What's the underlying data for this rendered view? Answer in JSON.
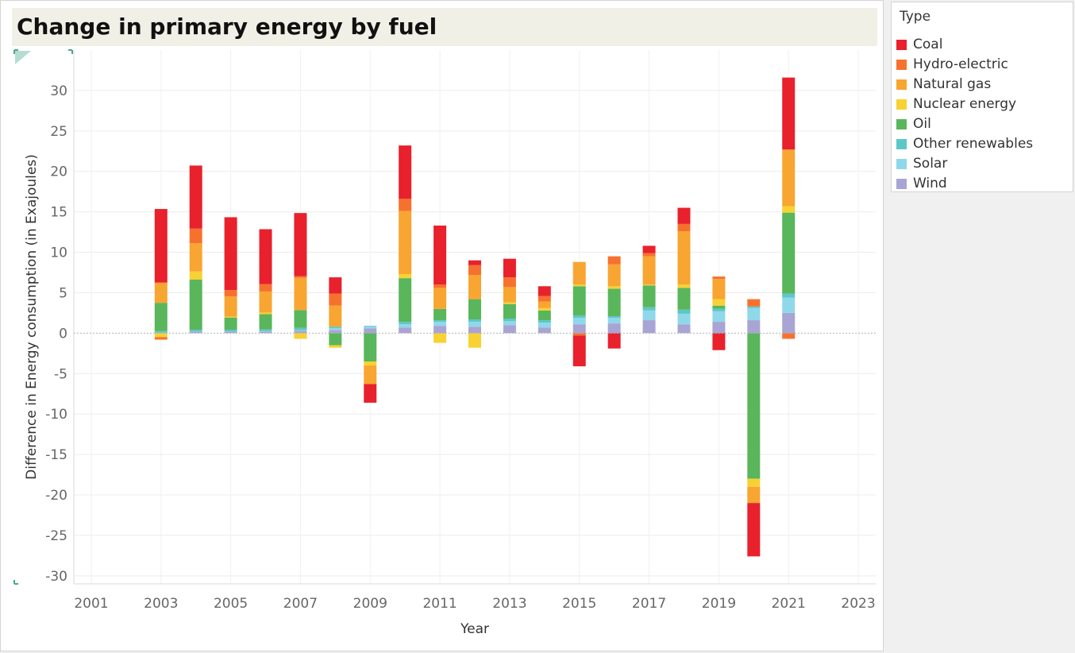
{
  "title": "Change in primary energy by fuel",
  "legend": {
    "title": "Type",
    "items": [
      {
        "label": "Coal",
        "color": "#e8212c"
      },
      {
        "label": "Hydro-electric",
        "color": "#f7712e"
      },
      {
        "label": "Natural gas",
        "color": "#f8a531"
      },
      {
        "label": "Nuclear energy",
        "color": "#f8d133"
      },
      {
        "label": "Oil",
        "color": "#59b65b"
      },
      {
        "label": "Other renewables",
        "color": "#5dc7c8"
      },
      {
        "label": "Solar",
        "color": "#8fd8ea"
      },
      {
        "label": "Wind",
        "color": "#a8a4d4"
      }
    ]
  },
  "chart_data": {
    "type": "bar",
    "stacked": true,
    "xlabel": "Year",
    "ylabel": "Difference in Energy consumption (in Exajoules)",
    "ylim": [
      -31,
      35
    ],
    "xlim": [
      2000.5,
      2023.5
    ],
    "yticks": [
      -30,
      -25,
      -20,
      -15,
      -10,
      -5,
      0,
      5,
      10,
      15,
      20,
      25,
      30
    ],
    "xticks": [
      2001,
      2003,
      2005,
      2007,
      2009,
      2011,
      2013,
      2015,
      2017,
      2019,
      2021,
      2023
    ],
    "grid": true,
    "legend_position": "right",
    "categories": [
      2003,
      2004,
      2005,
      2006,
      2007,
      2008,
      2009,
      2010,
      2011,
      2012,
      2013,
      2014,
      2015,
      2016,
      2017,
      2018,
      2019,
      2020,
      2021
    ],
    "series": [
      {
        "name": "Wind",
        "values": [
          0.05,
          0.2,
          0.2,
          0.2,
          0.3,
          0.4,
          0.6,
          0.7,
          0.9,
          0.8,
          1.0,
          0.7,
          1.1,
          1.2,
          1.6,
          1.1,
          1.4,
          1.6,
          2.5
        ]
      },
      {
        "name": "Solar",
        "values": [
          0.0,
          0.02,
          0.03,
          0.05,
          0.05,
          0.2,
          0.2,
          0.4,
          0.5,
          0.6,
          0.5,
          0.6,
          0.8,
          0.7,
          1.2,
          1.3,
          1.3,
          1.5,
          1.9
        ]
      },
      {
        "name": "Other renewables",
        "values": [
          0.2,
          0.2,
          0.2,
          0.2,
          0.3,
          0.2,
          0.1,
          0.3,
          0.2,
          0.3,
          0.3,
          0.3,
          0.3,
          0.2,
          0.4,
          0.5,
          0.3,
          0.2,
          0.5
        ]
      },
      {
        "name": "Oil",
        "values": [
          3.5,
          6.2,
          1.5,
          1.9,
          2.2,
          -1.5,
          -3.5,
          5.4,
          1.4,
          2.5,
          1.8,
          1.2,
          3.6,
          3.4,
          2.7,
          2.7,
          0.4,
          -18.0,
          10.0
        ]
      },
      {
        "name": "Nuclear energy",
        "values": [
          -0.5,
          1.0,
          0.1,
          0.2,
          -0.7,
          -0.3,
          -0.5,
          0.5,
          -1.2,
          -1.8,
          0.2,
          0.3,
          0.2,
          0.3,
          0.1,
          0.4,
          0.8,
          -1.0,
          0.8
        ]
      },
      {
        "name": "Natural gas",
        "values": [
          2.5,
          3.5,
          2.5,
          2.6,
          4.0,
          2.6,
          -2.3,
          7.8,
          2.6,
          3.0,
          1.9,
          0.8,
          2.8,
          2.7,
          3.5,
          6.6,
          2.5,
          -2.0,
          7.0
        ]
      },
      {
        "name": "Hydro-electric",
        "values": [
          -0.3,
          1.8,
          0.8,
          0.9,
          0.2,
          1.5,
          0.0,
          1.5,
          0.4,
          1.2,
          1.2,
          0.7,
          -0.3,
          1.0,
          0.4,
          0.9,
          0.3,
          0.9,
          -0.7
        ]
      },
      {
        "name": "Coal",
        "values": [
          9.1,
          7.8,
          9.0,
          6.8,
          7.8,
          2.0,
          -2.3,
          6.6,
          7.3,
          0.6,
          2.3,
          1.2,
          -3.8,
          -1.9,
          0.9,
          2.0,
          -2.1,
          -6.6,
          8.9
        ]
      }
    ]
  }
}
